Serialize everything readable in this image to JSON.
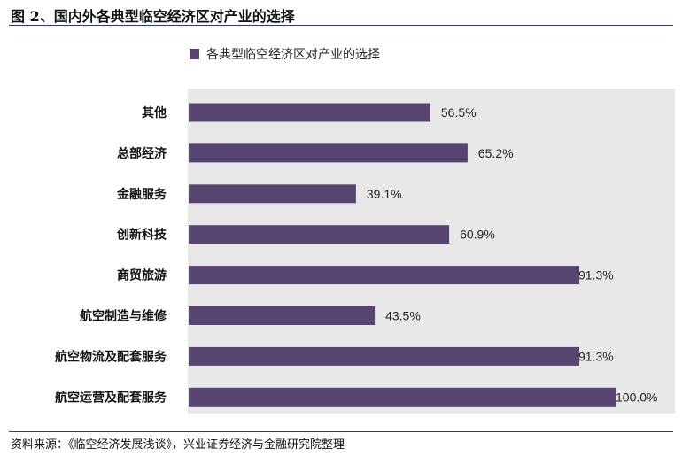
{
  "figure": {
    "title": "图 2、国内外各典型临空经济区对产业的选择",
    "source": "资料来源：《临空经济发展浅谈》，兴业证券经济与金融研究院整理"
  },
  "chart_data": {
    "type": "bar",
    "orientation": "horizontal",
    "categories": [
      "其他",
      "总部经济",
      "金融服务",
      "创新科技",
      "商贸旅游",
      "航空制造与维修",
      "航空物流及配套服务",
      "航空运营及配套服务"
    ],
    "series": [
      {
        "name": "各典型临空经济区对产业的选择",
        "values": [
          56.5,
          65.2,
          39.1,
          60.9,
          91.3,
          43.5,
          91.3,
          100.0
        ],
        "labels": [
          "56.5%",
          "65.2%",
          "39.1%",
          "60.9%",
          "91.3%",
          "43.5%",
          "91.3%",
          "100.0%"
        ],
        "color": "#574571"
      }
    ],
    "xlim": [
      0,
      100
    ],
    "grid": false,
    "legend_position": "top-left",
    "background_color": "#e9e8e9"
  }
}
